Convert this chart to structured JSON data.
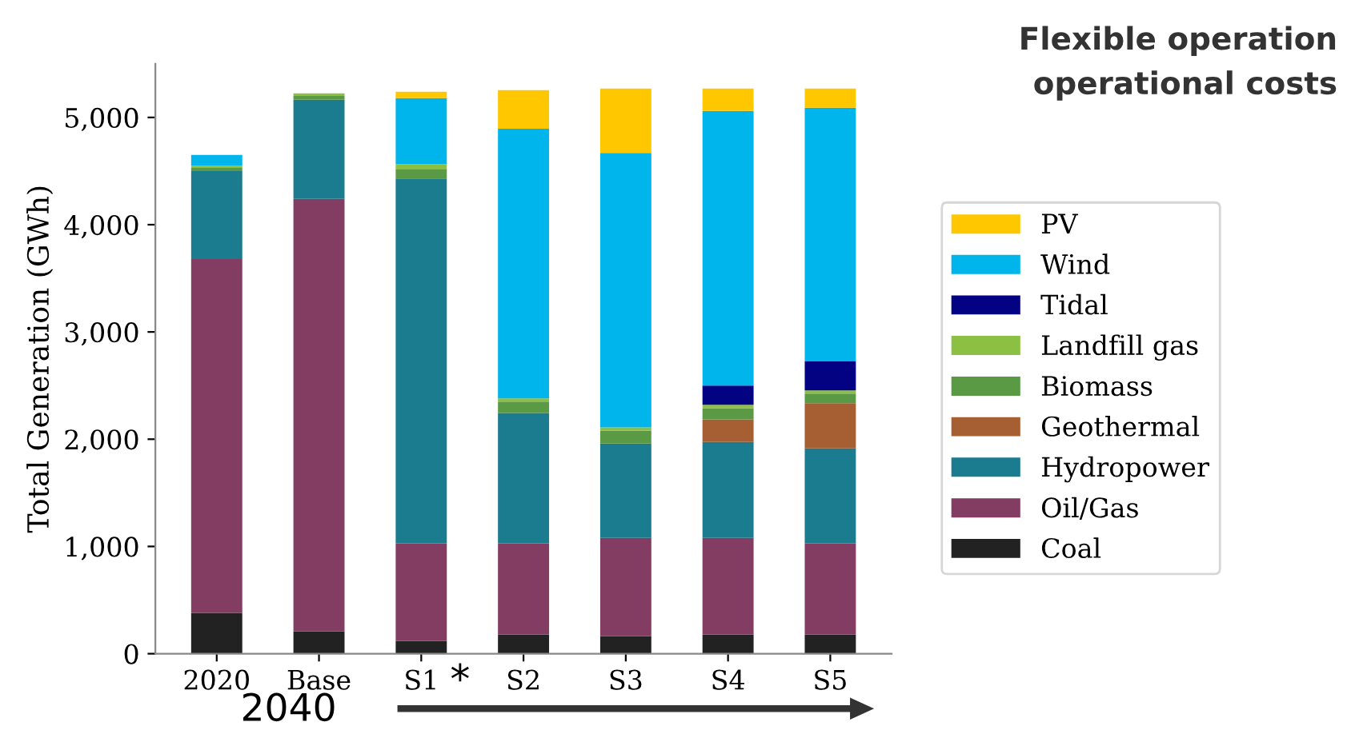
{
  "chart_data": {
    "type": "bar",
    "stacked": true,
    "ylabel": "Total Generation (GWh)",
    "categories": [
      "2020",
      "Base",
      "S1",
      "S2",
      "S3",
      "S4",
      "S5"
    ],
    "series": [
      {
        "name": "Coal",
        "color": "#222222",
        "values": [
          380,
          210,
          120,
          180,
          165,
          180,
          180
        ]
      },
      {
        "name": "Oil/Gas",
        "color": "#833c62",
        "values": [
          3300,
          4030,
          910,
          850,
          915,
          900,
          850
        ]
      },
      {
        "name": "Hydropower",
        "color": "#1b7b8f",
        "values": [
          820,
          925,
          3400,
          1215,
          880,
          895,
          885
        ]
      },
      {
        "name": "Geothermal",
        "color": "#a65f32",
        "values": [
          0,
          0,
          0,
          0,
          0,
          210,
          420
        ]
      },
      {
        "name": "Biomass",
        "color": "#5a9a45",
        "values": [
          30,
          35,
          90,
          105,
          120,
          105,
          90
        ]
      },
      {
        "name": "Landfill gas",
        "color": "#8cc043",
        "values": [
          20,
          25,
          45,
          30,
          30,
          30,
          30
        ]
      },
      {
        "name": "Tidal",
        "color": "#020282",
        "values": [
          0,
          0,
          0,
          0,
          0,
          180,
          270
        ]
      },
      {
        "name": "Wind",
        "color": "#00b4ec",
        "values": [
          100,
          0,
          615,
          2515,
          2560,
          2560,
          2365
        ]
      },
      {
        "name": "PV",
        "color": "#fec700",
        "values": [
          0,
          0,
          60,
          360,
          600,
          210,
          180
        ]
      }
    ],
    "ylim": [
      0,
      5500
    ],
    "yticks": [
      0,
      {
        "value": 1000,
        "label": "1,000"
      },
      {
        "value": 2000,
        "label": "2,000"
      },
      {
        "value": 3000,
        "label": "3,000"
      },
      {
        "value": 4000,
        "label": "4,000"
      },
      {
        "value": 5000,
        "label": "5,000"
      }
    ],
    "grid": false,
    "legend": "right",
    "annotations": [
      "*",
      "2040",
      "Flexible operation",
      "operational costs"
    ]
  }
}
